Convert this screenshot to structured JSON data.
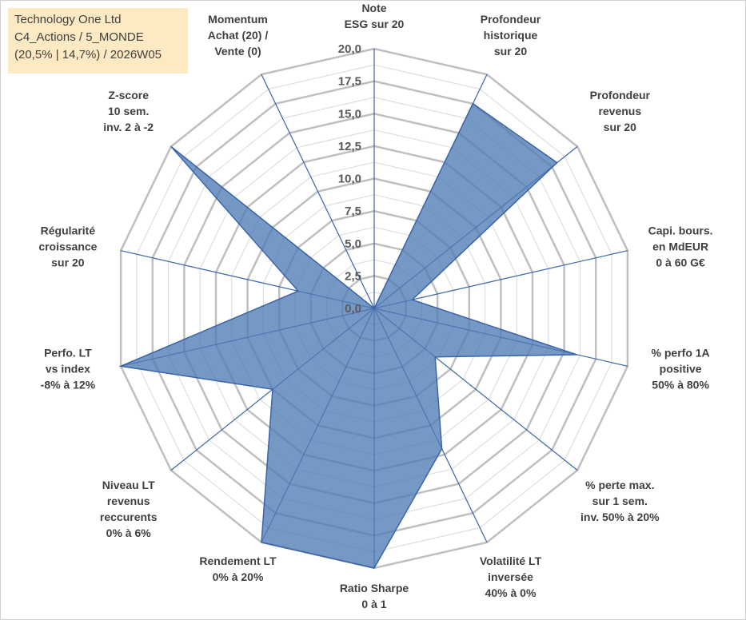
{
  "info": {
    "line1": "Technology One Ltd",
    "line2": "C4_Actions / 5_MONDE",
    "line3": "(20,5% | 14,7%) / 2026W05"
  },
  "colors": {
    "fill": "#4f7bb5",
    "stroke": "#3a64a8",
    "grid_major": "#bfbfbf",
    "grid_minor": "#d9d9d9",
    "spoke": "#3a64a8"
  },
  "chart_data": {
    "type": "radar",
    "r_range": [
      0,
      20
    ],
    "ticks": [
      "0,0",
      "2,5",
      "5,0",
      "7,5",
      "10,0",
      "12,5",
      "15,0",
      "17,5",
      "20,0"
    ],
    "categories": [
      {
        "label": [
          "Note",
          "ESG sur 20"
        ],
        "value": 0
      },
      {
        "label": [
          "Profondeur",
          "historique",
          "sur 20"
        ],
        "value": 17.5
      },
      {
        "label": [
          "Profondeur",
          "revenus",
          "sur 20"
        ],
        "value": 18
      },
      {
        "label": [
          "Capi. bours.",
          "en MdEUR",
          "0 à 60 G€"
        ],
        "value": 3
      },
      {
        "label": [
          "% perfo 1A",
          "positive",
          "50% à 80%"
        ],
        "value": 16
      },
      {
        "label": [
          "% perte max.",
          "sur 1 sem.",
          "inv. 50% à 20%"
        ],
        "value": 6
      },
      {
        "label": [
          "Volatilité LT",
          "inversée",
          "40% à 0%"
        ],
        "value": 12
      },
      {
        "label": [
          "Ratio Sharpe",
          "0 à 1"
        ],
        "value": 20
      },
      {
        "label": [
          "Rendement LT",
          "0% à 20%"
        ],
        "value": 20
      },
      {
        "label": [
          "Niveau LT",
          "revenus",
          "reccurents",
          "0% à 6%"
        ],
        "value": 10
      },
      {
        "label": [
          "Perfo. LT",
          "vs index",
          "-8% à 12%"
        ],
        "value": 20
      },
      {
        "label": [
          "Régularité",
          "croissance",
          "sur 20"
        ],
        "value": 6
      },
      {
        "label": [
          "Z-score",
          "10 sem.",
          "inv. 2 à -2"
        ],
        "value": 20
      },
      {
        "label": [
          "Momentum",
          "Achat (20) /",
          "Vente (0)"
        ],
        "value": 0
      }
    ]
  }
}
